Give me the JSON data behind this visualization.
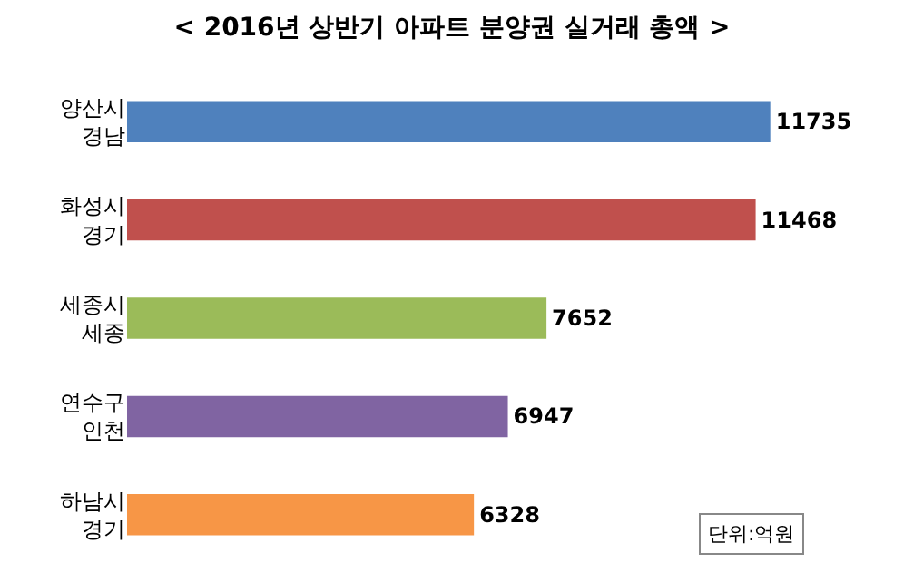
{
  "chart_data": {
    "type": "bar",
    "orientation": "horizontal",
    "title": "< 2016년 상반기 아파트 분양권 실거래 총액 >",
    "categories": [
      "양산시\n경남",
      "화성시\n경기",
      "세종시\n세종",
      "연수구\n인천",
      "하남시\n경기"
    ],
    "values": [
      11735,
      11468,
      7652,
      6947,
      6328
    ],
    "colors": [
      "#4f81bd",
      "#c0504d",
      "#9bbb59",
      "#8064a2",
      "#f79646"
    ],
    "data_labels": true,
    "annotations": [
      "단위:억원"
    ]
  }
}
